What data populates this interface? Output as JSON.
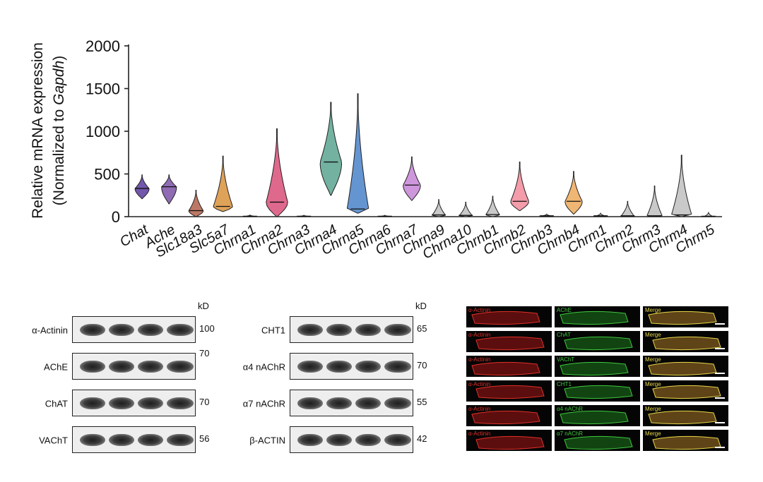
{
  "chart_data": {
    "type": "violin",
    "ylabel_line1": "Relative mRNA expression",
    "ylabel_line2_prefix": "(Normalized to ",
    "ylabel_line2_italic": "Gapdh",
    "ylabel_line2_suffix": ")",
    "ylim": [
      0,
      2000
    ],
    "yticks": [
      "0",
      "500",
      "1000",
      "1500",
      "2000"
    ],
    "categories": [
      "Chat",
      "Ache",
      "Slc18a3",
      "Slc5a7",
      "Chrna1",
      "Chrna2",
      "Chrna3",
      "Chrna4",
      "Chrna5",
      "Chrna6",
      "Chrna7",
      "Chrna9",
      "Chrna10",
      "Chrnb1",
      "Chrnb2",
      "Chrnb3",
      "Chrnb4",
      "Chrm1",
      "Chrm2",
      "Chrm3",
      "Chrm4",
      "Chrm5"
    ],
    "series": [
      {
        "min": 210,
        "max": 490,
        "median": 330,
        "color": "#5b3a9e"
      },
      {
        "min": 150,
        "max": 490,
        "median": 350,
        "color": "#7b52a6"
      },
      {
        "min": 0,
        "max": 310,
        "median": 70,
        "color": "#b2604a"
      },
      {
        "min": 60,
        "max": 710,
        "median": 120,
        "color": "#d9923c"
      },
      {
        "min": 0,
        "max": 20,
        "median": 5,
        "color": "#c9566e"
      },
      {
        "min": 0,
        "max": 1030,
        "median": 170,
        "color": "#d94f78"
      },
      {
        "min": 0,
        "max": 15,
        "median": 5,
        "color": "#b35a5a"
      },
      {
        "min": 250,
        "max": 1340,
        "median": 640,
        "color": "#5aa58f"
      },
      {
        "min": 40,
        "max": 1440,
        "median": 90,
        "color": "#4a82c9"
      },
      {
        "min": 0,
        "max": 15,
        "median": 5,
        "color": "#7a7a7a"
      },
      {
        "min": 190,
        "max": 700,
        "median": 370,
        "color": "#c585d6"
      },
      {
        "min": 0,
        "max": 200,
        "median": 20,
        "color": "#bfbfbf"
      },
      {
        "min": 0,
        "max": 170,
        "median": 15,
        "color": "#bfbfbf"
      },
      {
        "min": 0,
        "max": 240,
        "median": 25,
        "color": "#bfbfbf"
      },
      {
        "min": 70,
        "max": 640,
        "median": 180,
        "color": "#f28b9b"
      },
      {
        "min": 0,
        "max": 30,
        "median": 10,
        "color": "#bfbfbf"
      },
      {
        "min": 30,
        "max": 530,
        "median": 180,
        "color": "#eda95a"
      },
      {
        "min": 0,
        "max": 40,
        "median": 10,
        "color": "#bfbfbf"
      },
      {
        "min": 0,
        "max": 180,
        "median": 10,
        "color": "#bfbfbf"
      },
      {
        "min": 0,
        "max": 360,
        "median": 10,
        "color": "#bfbfbf"
      },
      {
        "min": 0,
        "max": 720,
        "median": 20,
        "color": "#bfbfbf"
      },
      {
        "min": 0,
        "max": 50,
        "median": 5,
        "color": "#bfbfbf"
      }
    ]
  },
  "western_blot": {
    "kd_label": "kD",
    "left": [
      {
        "protein": "α-Actinin",
        "kd": "100"
      },
      {
        "protein": "AChE",
        "kd": "70"
      },
      {
        "protein": "ChAT",
        "kd": "70"
      },
      {
        "protein": "VAChT",
        "kd": "56"
      }
    ],
    "right": [
      {
        "protein": "CHT1",
        "kd": "65"
      },
      {
        "protein": "α4 nAChR",
        "kd": "70"
      },
      {
        "protein": "α7 nAChR",
        "kd": "55"
      },
      {
        "protein": "β-ACTIN",
        "kd": "42"
      }
    ]
  },
  "immunofluorescence": {
    "colors": {
      "red": "#e0302a",
      "green": "#3ec93e",
      "merge": "#e8d84a"
    },
    "rows": [
      {
        "red": "α-Actinin",
        "green": "AChE",
        "merge": "Merge"
      },
      {
        "red": "α-Actinin",
        "green": "ChAT",
        "merge": "Merge"
      },
      {
        "red": "α-Actinin",
        "green": "VAChT",
        "merge": "Merge"
      },
      {
        "red": "α-Actinin",
        "green": "CHT1",
        "merge": "Merge"
      },
      {
        "red": "α-Actinin",
        "green": "α4 nAChR",
        "merge": "Merge"
      },
      {
        "red": "α-Actinin",
        "green": "α7 nAChR",
        "merge": "Merge"
      }
    ]
  }
}
